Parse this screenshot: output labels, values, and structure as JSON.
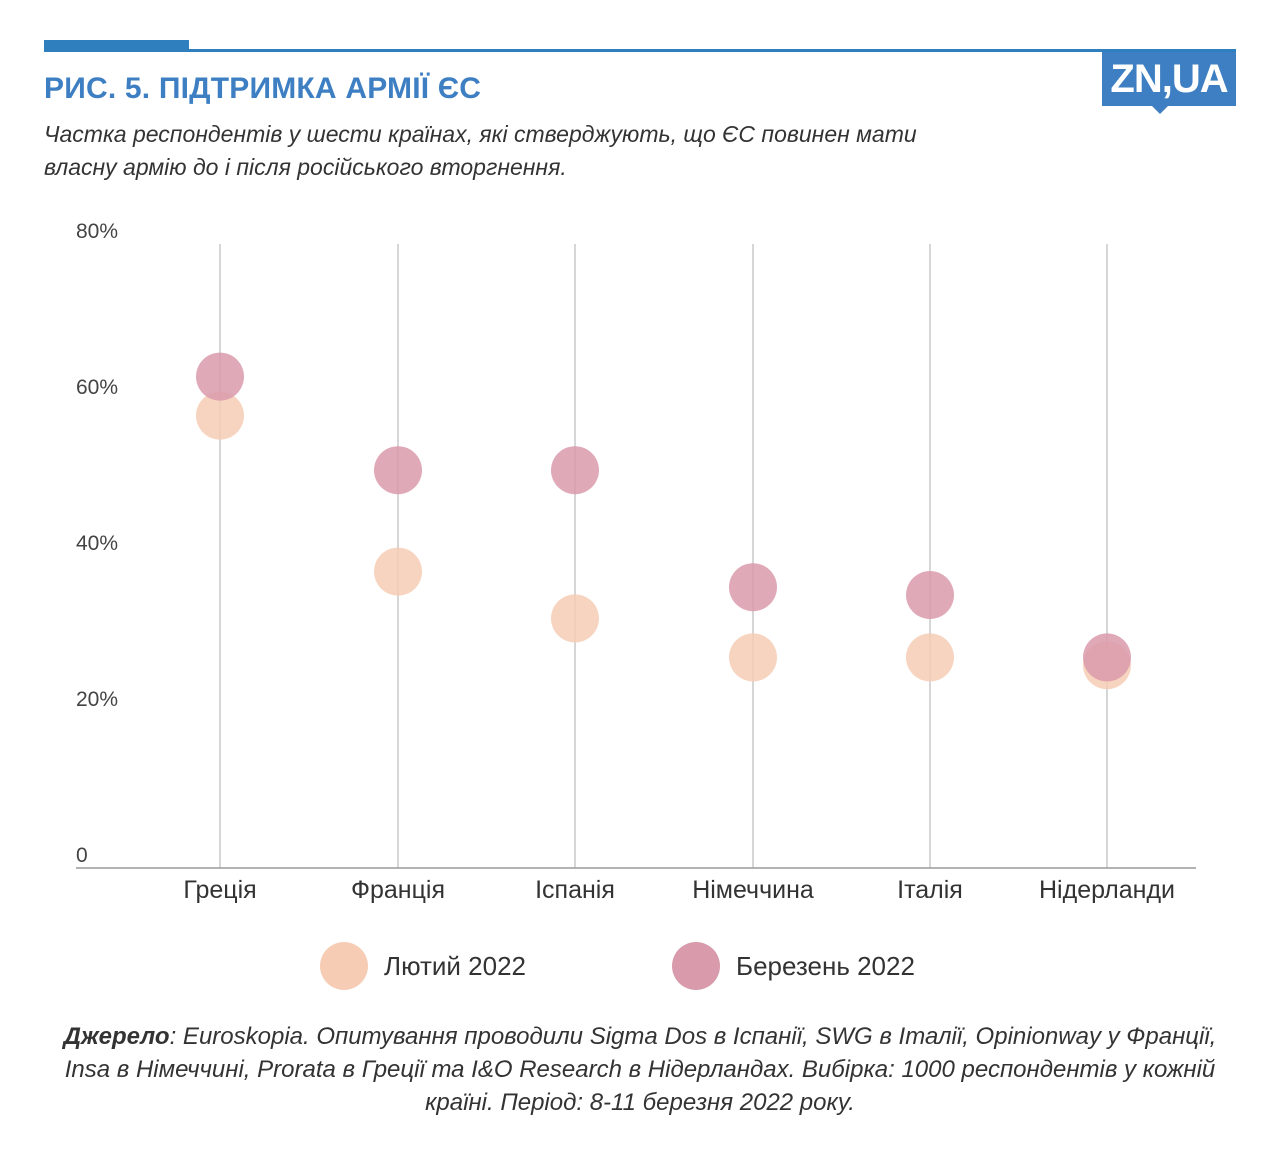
{
  "header": {
    "title": "РИС. 5. ПІДТРИМКА АРМІЇ ЄС",
    "subtitle": "Частка респондентів у шести країнах, які стверджують, що ЄС повинен мати власну армію до і після російського вторгнення.",
    "logo_text": "ZN,UA"
  },
  "colors": {
    "accent": "#2f7fbf",
    "feb": "#f6cdb4",
    "mar": "#d99aab"
  },
  "chart_data": {
    "type": "scatter",
    "categories": [
      "Греція",
      "Франція",
      "Іспанія",
      "Німеччина",
      "Італія",
      "Нідерланди"
    ],
    "y_ticks": [
      {
        "value": 0,
        "label": "0"
      },
      {
        "value": 20,
        "label": "20%"
      },
      {
        "value": 40,
        "label": "40%"
      },
      {
        "value": 60,
        "label": "60%"
      },
      {
        "value": 80,
        "label": "80%"
      }
    ],
    "ylim": [
      0,
      80
    ],
    "grid": "vertical",
    "legend_position": "bottom",
    "series": [
      {
        "name": "Лютий 2022",
        "color": "#f6cdb4",
        "values": [
          58,
          38,
          32,
          27,
          27,
          26
        ]
      },
      {
        "name": "Березень 2022",
        "color": "#d99aab",
        "values": [
          63,
          51,
          51,
          36,
          35,
          27
        ]
      }
    ]
  },
  "source": {
    "label": "Джерело",
    "text": ": Euroskopia. Опитування проводили Sigma Dos в Іспанії, SWG в Італії, Opinionway у Франції, Insa в Німеччині, Prorata в Греції та I&O Research в Нідерландах. Вибірка: 1000 респондентів у кожній країні. Період: 8-11 березня 2022 року."
  }
}
